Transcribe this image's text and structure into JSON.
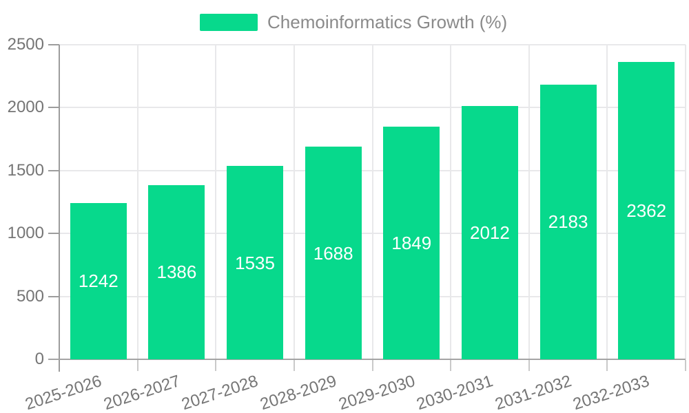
{
  "chart_data": {
    "type": "bar",
    "title": "",
    "legend_label": "Chemoinformatics Growth (%)",
    "legend_position": "top-center",
    "categories": [
      "2025-2026",
      "2026-2027",
      "2027-2028",
      "2028-2029",
      "2029-2030",
      "2030-2031",
      "2031-2032",
      "2032-2033"
    ],
    "values": [
      1242,
      1386,
      1535,
      1688,
      1849,
      2012,
      2183,
      2362
    ],
    "xlabel": "",
    "ylabel": "",
    "ylim": [
      0,
      2500
    ],
    "yticks": [
      0,
      500,
      1000,
      1500,
      2000,
      2500
    ],
    "grid": true,
    "bar_labels_inside": true,
    "colors": {
      "bar": "#07d98c",
      "bar_value_text": "#ffffff",
      "axis_label": "#757575",
      "legend_text": "#8a8a8a",
      "gridline": "#e8e8ea",
      "axis_line": "#a4a4a4",
      "x_tick": "#c9c9c9",
      "y_tick": "#9c9c9c"
    }
  }
}
